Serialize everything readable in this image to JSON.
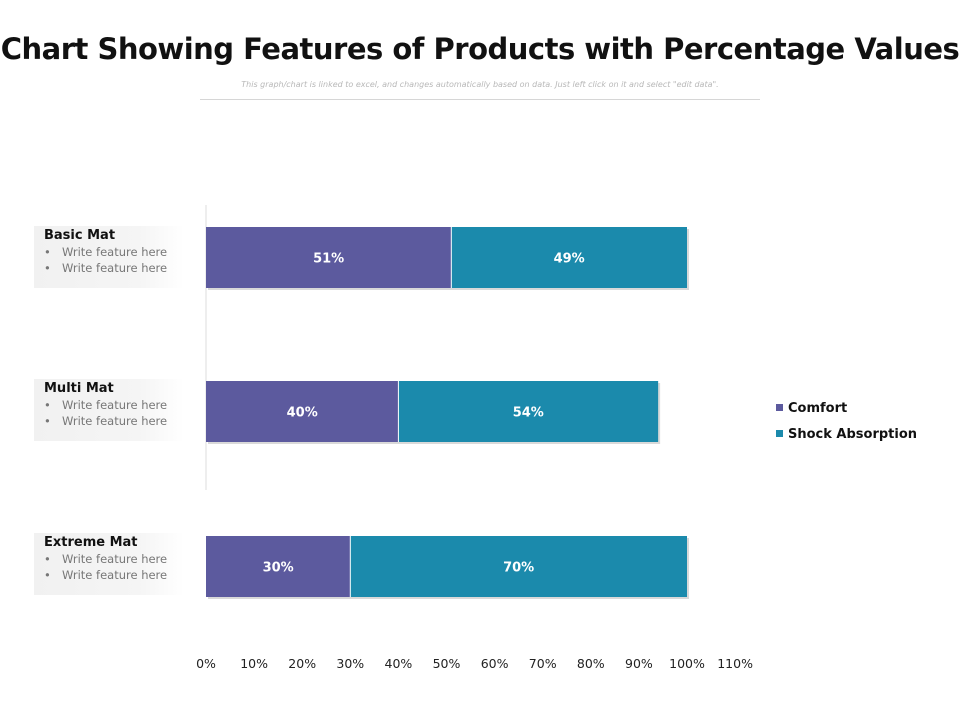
{
  "chart_data": {
    "type": "bar",
    "orientation": "horizontal",
    "stacked": true,
    "title": "Chart Showing Features of Products with Percentage Values",
    "subtitle": "This graph/chart is linked to excel, and changes automatically based on data. Just left click on it and select \"edit data\".",
    "categories": [
      "Basic Mat",
      "Multi Mat",
      "Extreme Mat"
    ],
    "series": [
      {
        "name": "Comfort",
        "values": [
          51,
          40,
          30
        ],
        "labels": [
          "51%",
          "40%",
          "30%"
        ],
        "color": "#5c5a9e"
      },
      {
        "name": "Shock Absorption",
        "values": [
          49,
          54,
          70
        ],
        "labels": [
          "49%",
          "54%",
          "70%"
        ],
        "color": "#1b8aac"
      }
    ],
    "xlim": [
      0,
      110
    ],
    "xticks": [
      "0%",
      "10%",
      "20%",
      "30%",
      "40%",
      "50%",
      "60%",
      "70%",
      "80%",
      "90%",
      "100%",
      "110%"
    ],
    "legend_position": "right"
  },
  "categories_detail": [
    {
      "title": "Basic Mat",
      "features": [
        "Write feature here",
        "Write feature here"
      ]
    },
    {
      "title": "Multi Mat",
      "features": [
        "Write feature here",
        "Write feature here"
      ]
    },
    {
      "title": "Extreme Mat",
      "features": [
        "Write feature here",
        "Write feature here"
      ]
    }
  ],
  "colors": {
    "comfort": "#5c5a9e",
    "shock_absorption": "#1b8aac"
  }
}
